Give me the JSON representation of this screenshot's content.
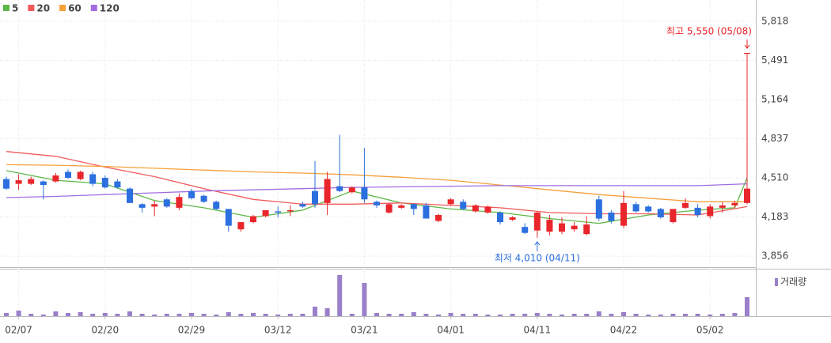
{
  "chart_data": {
    "type": "candlestick",
    "categories": [
      null,
      "02/07",
      null,
      null,
      null,
      null,
      null,
      null,
      "02/20",
      null,
      null,
      null,
      null,
      null,
      null,
      "02/29",
      null,
      null,
      null,
      null,
      null,
      null,
      "03/12",
      null,
      null,
      null,
      null,
      null,
      null,
      "03/21",
      null,
      null,
      null,
      null,
      null,
      null,
      "04/01",
      null,
      null,
      null,
      null,
      null,
      null,
      "04/11",
      null,
      null,
      null,
      null,
      null,
      null,
      "04/22",
      null,
      null,
      null,
      null,
      null,
      null,
      "05/02",
      null,
      null,
      null
    ],
    "open": [
      4500,
      4460,
      4460,
      4480,
      4480,
      4560,
      4500,
      4540,
      4510,
      4480,
      4420,
      4290,
      4270,
      4330,
      4260,
      4400,
      4360,
      4310,
      4250,
      4080,
      4140,
      4190,
      4230,
      4230,
      4290,
      4400,
      4300,
      4440,
      4390,
      4430,
      4310,
      4220,
      4260,
      4290,
      4280,
      4150,
      4290,
      4310,
      4230,
      4220,
      4220,
      4160,
      4100,
      4070,
      4060,
      4060,
      4080,
      4040,
      4330,
      4220,
      4110,
      4290,
      4270,
      4250,
      4140,
      4260,
      4260,
      4190,
      4260,
      4280,
      4300
    ],
    "high": [
      4520,
      4540,
      4520,
      4490,
      4550,
      4580,
      4570,
      4560,
      4530,
      4500,
      4430,
      4300,
      4320,
      4340,
      4380,
      4420,
      4370,
      4320,
      4250,
      4140,
      4200,
      4240,
      4270,
      4280,
      4310,
      4650,
      4560,
      4870,
      4440,
      4760,
      4320,
      4300,
      4290,
      4300,
      4300,
      4210,
      4340,
      4330,
      4290,
      4280,
      4230,
      4190,
      4130,
      4230,
      4200,
      4180,
      4140,
      4190,
      4360,
      4240,
      4400,
      4310,
      4280,
      4260,
      4250,
      4340,
      4290,
      4290,
      4310,
      4320,
      5550
    ],
    "low": [
      4410,
      4410,
      4450,
      4330,
      4470,
      4500,
      4490,
      4440,
      4420,
      4420,
      4300,
      4220,
      4190,
      4260,
      4240,
      4330,
      4300,
      4240,
      4060,
      4060,
      4130,
      4180,
      4180,
      4190,
      4260,
      4260,
      4200,
      4390,
      4380,
      4300,
      4260,
      4210,
      4250,
      4200,
      4170,
      4140,
      4280,
      4240,
      4220,
      4210,
      4120,
      4150,
      4040,
      4010,
      4030,
      4040,
      4060,
      4030,
      4150,
      4130,
      4090,
      4220,
      4220,
      4170,
      4130,
      4250,
      4180,
      4170,
      4220,
      4260,
      4290
    ],
    "close": [
      4420,
      4490,
      4500,
      4450,
      4530,
      4510,
      4560,
      4460,
      4430,
      4430,
      4300,
      4260,
      4290,
      4270,
      4350,
      4340,
      4310,
      4250,
      4110,
      4140,
      4190,
      4240,
      4220,
      4240,
      4270,
      4290,
      4500,
      4400,
      4430,
      4330,
      4280,
      4290,
      4280,
      4250,
      4170,
      4200,
      4330,
      4250,
      4280,
      4270,
      4140,
      4180,
      4050,
      4220,
      4160,
      4130,
      4110,
      4120,
      4170,
      4150,
      4300,
      4230,
      4230,
      4180,
      4250,
      4300,
      4200,
      4270,
      4280,
      4300,
      4420
    ],
    "up_color": "#e8262c",
    "down_color": "#2c6fde",
    "ylim": [
      3764,
      5996
    ],
    "yticks": [
      {
        "value": 5818,
        "label": "5,818"
      },
      {
        "value": 5491,
        "label": "5,491"
      },
      {
        "value": 5164,
        "label": "5,164"
      },
      {
        "value": 4837,
        "label": "4,837"
      },
      {
        "value": 4510,
        "label": "4,510"
      },
      {
        "value": 4183,
        "label": "4,183"
      },
      {
        "value": 3856,
        "label": "3,856"
      }
    ],
    "grid": true,
    "series": [
      {
        "name": "5",
        "color": "#5cb847",
        "x": [
          0,
          4,
          8,
          12,
          16,
          20,
          24,
          28,
          32,
          36,
          40,
          44,
          48,
          52,
          56,
          59,
          60
        ],
        "values": [
          4570,
          4490,
          4460,
          4320,
          4260,
          4180,
          4240,
          4400,
          4300,
          4250,
          4220,
          4170,
          4130,
          4200,
          4240,
          4260,
          4510
        ]
      },
      {
        "name": "20",
        "color": "#f05a5a",
        "x": [
          0,
          4,
          8,
          12,
          16,
          20,
          24,
          28,
          32,
          36,
          40,
          44,
          48,
          52,
          56,
          60
        ],
        "values": [
          4730,
          4690,
          4600,
          4520,
          4420,
          4330,
          4290,
          4290,
          4300,
          4280,
          4260,
          4220,
          4210,
          4210,
          4200,
          4270
        ]
      },
      {
        "name": "60",
        "color": "#f5a03a",
        "x": [
          0,
          4,
          8,
          12,
          16,
          20,
          24,
          28,
          32,
          36,
          40,
          44,
          48,
          52,
          56,
          60
        ],
        "values": [
          4620,
          4615,
          4605,
          4590,
          4575,
          4560,
          4550,
          4535,
          4515,
          4490,
          4450,
          4410,
          4370,
          4340,
          4310,
          4310
        ]
      },
      {
        "name": "120",
        "color": "#a06ee0",
        "x": [
          0,
          4,
          8,
          12,
          16,
          20,
          24,
          28,
          32,
          36,
          40,
          44,
          48,
          52,
          56,
          60
        ],
        "values": [
          4345,
          4355,
          4370,
          4385,
          4400,
          4410,
          4420,
          4430,
          4435,
          4440,
          4445,
          4445,
          4445,
          4445,
          4445,
          4460
        ]
      }
    ],
    "volume": {
      "name": "거래량",
      "color": "#9a7fca",
      "vlim": [
        0,
        60
      ],
      "values": [
        4,
        7,
        3,
        2,
        6,
        4,
        5,
        3,
        4,
        3,
        6,
        3,
        2,
        3,
        3,
        4,
        3,
        2,
        5,
        3,
        4,
        3,
        2,
        3,
        3,
        12,
        10,
        52,
        3,
        42,
        4,
        3,
        3,
        5,
        3,
        2,
        4,
        3,
        3,
        2,
        2,
        3,
        3,
        4,
        3,
        2,
        3,
        3,
        6,
        3,
        5,
        3,
        2,
        2,
        3,
        3,
        3,
        2,
        3,
        4,
        24
      ]
    },
    "annotations": [
      {
        "text": "최고 5,550 (05/08)",
        "color": "#e8262c"
      },
      {
        "text": "최저 4,010 (04/11)",
        "color": "#2c6fde"
      }
    ]
  }
}
